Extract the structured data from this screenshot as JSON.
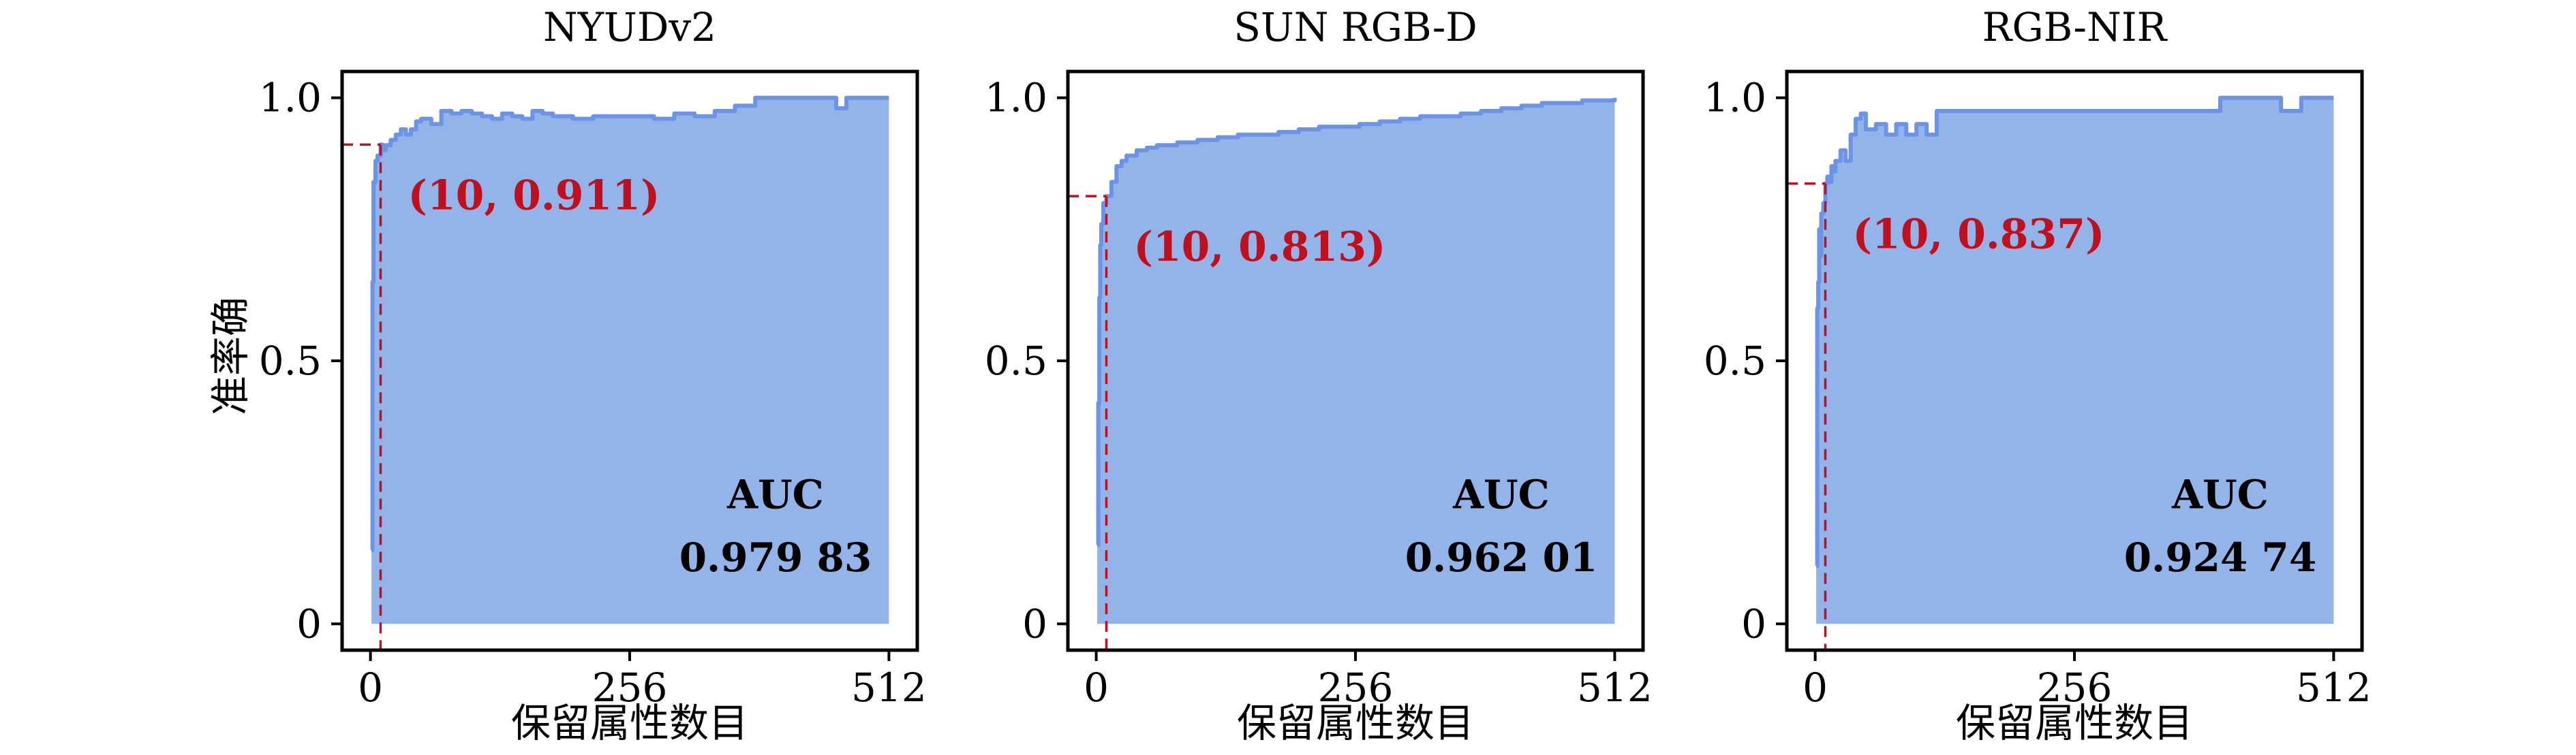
{
  "figure": {
    "y_axis_label": "准率确",
    "x_axis_label": "保留属性数目"
  },
  "chart_data": [
    {
      "type": "area",
      "title": "NYUDv2",
      "xlabel": "保留属性数目",
      "ylabel": "准率确",
      "xlim": [
        -28,
        540
      ],
      "ylim": [
        -0.05,
        1.05
      ],
      "xticks": [
        0,
        256,
        512
      ],
      "xtick_labels": [
        "0",
        "256",
        "512"
      ],
      "yticks": [
        0,
        0.5,
        1.0
      ],
      "ytick_labels": [
        "0",
        "0.5",
        "1.0"
      ],
      "grid": false,
      "legend": "none",
      "series_color": "#6b93e6",
      "fill_color": "#93b4e9",
      "marker": {
        "x": 10,
        "y": 0.911,
        "label": "(10, 0.911)",
        "color": "#c0101e"
      },
      "auc_label": "AUC",
      "auc_value": "0.979 83",
      "x": [
        1,
        2,
        3,
        5,
        7,
        10,
        12,
        15,
        20,
        25,
        30,
        35,
        40,
        45,
        50,
        60,
        70,
        80,
        90,
        100,
        110,
        120,
        130,
        140,
        150,
        160,
        170,
        180,
        200,
        220,
        240,
        260,
        280,
        300,
        320,
        340,
        360,
        380,
        400,
        420,
        440,
        460,
        470,
        480,
        500,
        512
      ],
      "y": [
        0.14,
        0.65,
        0.84,
        0.88,
        0.89,
        0.911,
        0.9,
        0.91,
        0.92,
        0.93,
        0.94,
        0.93,
        0.94,
        0.955,
        0.96,
        0.95,
        0.975,
        0.97,
        0.975,
        0.97,
        0.965,
        0.96,
        0.97,
        0.965,
        0.96,
        0.975,
        0.97,
        0.965,
        0.96,
        0.965,
        0.965,
        0.965,
        0.96,
        0.97,
        0.965,
        0.975,
        0.985,
        1.0,
        1.0,
        1.0,
        1.0,
        0.98,
        1.0,
        1.0,
        1.0,
        1.0
      ]
    },
    {
      "type": "area",
      "title": "SUN RGB-D",
      "xlabel": "保留属性数目",
      "ylabel": "",
      "xlim": [
        -28,
        540
      ],
      "ylim": [
        -0.05,
        1.05
      ],
      "xticks": [
        0,
        256,
        512
      ],
      "xtick_labels": [
        "0",
        "256",
        "512"
      ],
      "yticks": [
        0,
        0.5,
        1.0
      ],
      "ytick_labels": [
        "0",
        "0.5",
        "1.0"
      ],
      "grid": false,
      "legend": "none",
      "series_color": "#6b93e6",
      "fill_color": "#93b4e9",
      "marker": {
        "x": 10,
        "y": 0.813,
        "label": "(10, 0.813)",
        "color": "#c0101e"
      },
      "auc_label": "AUC",
      "auc_value": "0.962 01",
      "x": [
        1,
        2,
        3,
        4,
        5,
        7,
        10,
        15,
        20,
        25,
        30,
        40,
        50,
        60,
        80,
        100,
        120,
        140,
        160,
        180,
        200,
        220,
        240,
        260,
        280,
        300,
        320,
        340,
        360,
        380,
        400,
        420,
        440,
        460,
        480,
        500,
        512
      ],
      "y": [
        0.15,
        0.42,
        0.62,
        0.72,
        0.76,
        0.8,
        0.813,
        0.84,
        0.87,
        0.88,
        0.89,
        0.9,
        0.905,
        0.91,
        0.915,
        0.92,
        0.925,
        0.93,
        0.93,
        0.935,
        0.94,
        0.945,
        0.945,
        0.95,
        0.955,
        0.96,
        0.965,
        0.965,
        0.97,
        0.975,
        0.98,
        0.985,
        0.99,
        0.99,
        0.995,
        0.995,
        1.0
      ]
    },
    {
      "type": "area",
      "title": "RGB-NIR",
      "xlabel": "保留属性数目",
      "ylabel": "",
      "xlim": [
        -28,
        540
      ],
      "ylim": [
        -0.05,
        1.05
      ],
      "xticks": [
        0,
        256,
        512
      ],
      "xtick_labels": [
        "0",
        "256",
        "512"
      ],
      "yticks": [
        0,
        0.5,
        1.0
      ],
      "ytick_labels": [
        "0",
        "0.5",
        "1.0"
      ],
      "grid": false,
      "legend": "none",
      "series_color": "#6b93e6",
      "fill_color": "#93b4e9",
      "marker": {
        "x": 10,
        "y": 0.837,
        "label": "(10, 0.837)",
        "color": "#c0101e"
      },
      "auc_label": "AUC",
      "auc_value": "0.924 74",
      "x": [
        1,
        2,
        3,
        4,
        5,
        6,
        8,
        10,
        12,
        14,
        16,
        18,
        20,
        25,
        30,
        35,
        40,
        45,
        50,
        60,
        70,
        80,
        90,
        100,
        110,
        120,
        150,
        200,
        250,
        300,
        350,
        380,
        400,
        410,
        420,
        440,
        460,
        480,
        500,
        512
      ],
      "y": [
        0.11,
        0.6,
        0.65,
        0.75,
        0.7,
        0.78,
        0.8,
        0.837,
        0.85,
        0.84,
        0.87,
        0.86,
        0.88,
        0.9,
        0.88,
        0.93,
        0.96,
        0.97,
        0.94,
        0.95,
        0.93,
        0.95,
        0.93,
        0.95,
        0.93,
        0.975,
        0.975,
        0.975,
        0.975,
        0.975,
        0.975,
        0.975,
        1.0,
        1.0,
        1.0,
        1.0,
        0.975,
        1.0,
        1.0,
        1.0
      ]
    }
  ]
}
